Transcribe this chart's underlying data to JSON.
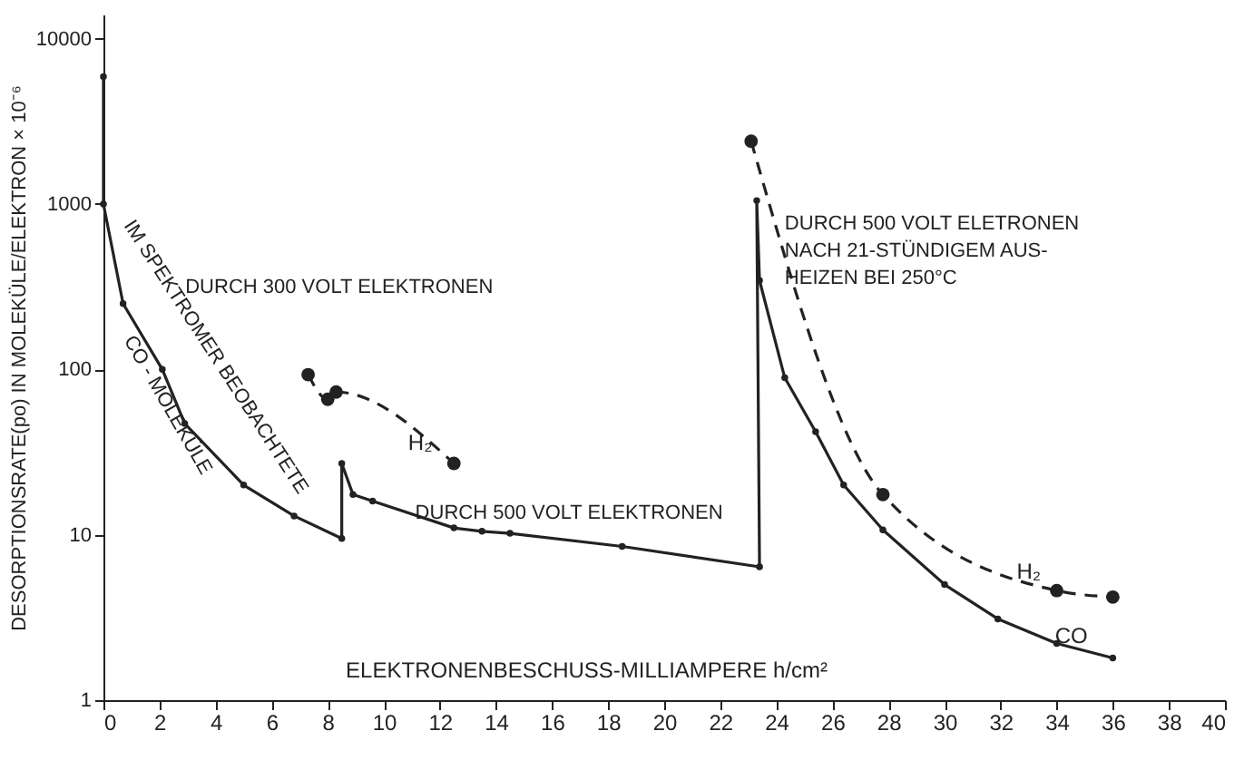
{
  "chart_data": {
    "type": "line",
    "xlabel": "ELEKTRONENBESCHUSS-MILLIAMPERE h/cm²",
    "ylabel": "DESORPTIONSRATE(po) IN MOLEKÜLE/ELEKTRON × 10⁻⁶",
    "log": "y",
    "xlim": [
      0,
      40
    ],
    "xticks": [
      0,
      2,
      4,
      6,
      8,
      10,
      12,
      14,
      16,
      18,
      20,
      22,
      24,
      26,
      28,
      30,
      32,
      34,
      36,
      38,
      40
    ],
    "ylim": [
      1,
      14000
    ],
    "yticks": [
      1,
      10,
      100,
      1000,
      10000
    ],
    "grid": false,
    "series": [
      {
        "color": "#222222",
        "line_style": "solid",
        "marker": "circle",
        "x": [
          0,
          0,
          0.7,
          2.1,
          2.9,
          5,
          6.8,
          8.5,
          8.5,
          8.9,
          9.6,
          12.5,
          13.5,
          14.5,
          18.5,
          23.4,
          23.3,
          23.4,
          24.3,
          25.4,
          26.4,
          27.8,
          30,
          31.9,
          34,
          36
        ],
        "values": [
          5900,
          1000,
          250,
          100,
          47,
          20,
          13,
          9.5,
          27,
          17.5,
          16,
          11,
          10.5,
          10.2,
          8.5,
          6.4,
          1050,
          345,
          89,
          42,
          20,
          10.7,
          5,
          3.1,
          2.2,
          1.8
        ]
      },
      {
        "color": "#222222",
        "line_style": "dashed",
        "marker": "circle",
        "x": [
          7.3,
          8.0,
          8.3,
          12.5,
          null,
          23.1,
          27.8,
          34,
          36
        ],
        "values": [
          93,
          66,
          73,
          27,
          null,
          2400,
          17.5,
          4.6,
          4.2
        ]
      }
    ],
    "annotations": [
      "IM SPEKTROMER BEOBACHTETE",
      "CO - MOLEKÜLE",
      "DURCH 300 VOLT ELEKTRONEN",
      {
        "text": "H₂",
        "x": 11.3,
        "y": 36
      },
      "DURCH 500 VOLT ELEKTRONEN",
      {
        "text": "DURCH 500 VOLT ELETRONEN\nNACH 21-STÜNDIGEM AUS-\nHEIZEN BEI 250°C",
        "x": 24.3,
        "y": 760
      },
      "H₂",
      "CO"
    ]
  }
}
